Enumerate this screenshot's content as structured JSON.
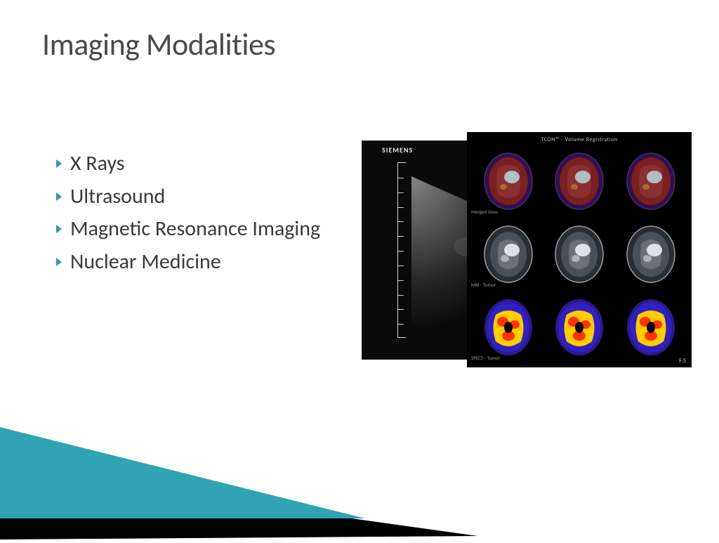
{
  "title": "Imaging Modalities",
  "title_color": "#4a4a4a",
  "title_fontsize": 44,
  "bullets": {
    "marker_color": "#2b9ca8",
    "text_color": "#3a3a3a",
    "fontsize": 30,
    "items": [
      {
        "label": "X Rays"
      },
      {
        "label": "Ultrasound"
      },
      {
        "label": "Magnetic Resonance Imaging"
      },
      {
        "label": "Nuclear Medicine"
      }
    ]
  },
  "ultrasound": {
    "header": "SIEMENS",
    "panel_bg": "#0a0a0a",
    "ruler_color": "#cfcfcf",
    "fan_gradient_from": "#6a6a6a",
    "fan_gradient_to": "#0a0a0a"
  },
  "brain_grid": {
    "bg": "#000000",
    "header": "TCON™ - Volume Registration",
    "rows": [
      {
        "label": "Merged View",
        "palette": "pet_mri",
        "outline": "#4a2a6a",
        "fill_inner": "#7a2020",
        "fill_outer": "#301050",
        "tumor": "#b7d7e0"
      },
      {
        "label": "MRI - Tumor",
        "palette": "mri",
        "outline": "#9aa0a6",
        "fill_inner": "#c8cdd2",
        "fill_outer": "#2a2e33",
        "tumor": "#e8f0f4"
      },
      {
        "label": "SPECT - Tumor",
        "palette": "spect",
        "outline": "#1a1a7a",
        "fill_inner": "#ffcc00",
        "fill_outer": "#2a1a8a",
        "hot": "#ff3300"
      }
    ],
    "footer_right": "F:5"
  },
  "decoration": {
    "teal": "#2fa3b3",
    "light_blue": "#bcd5e4",
    "black": "#000000"
  }
}
